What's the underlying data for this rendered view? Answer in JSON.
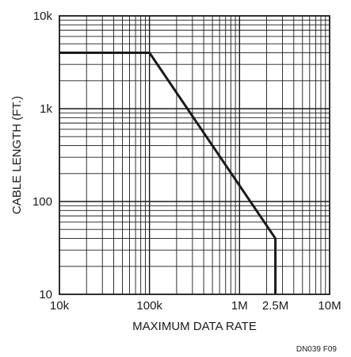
{
  "chart_data": {
    "type": "line",
    "xlabel": "MAXIMUM DATA RATE",
    "ylabel": "CABLE LENGTH (FT.)",
    "xscale": "log",
    "yscale": "log",
    "xlim": [
      10000,
      10000000
    ],
    "ylim": [
      10,
      10000
    ],
    "grid": true,
    "x_ticks": [
      {
        "value": 10000,
        "label": "10k"
      },
      {
        "value": 100000,
        "label": "100k"
      },
      {
        "value": 1000000,
        "label": "1M"
      },
      {
        "value": 2500000,
        "label": "2.5M"
      },
      {
        "value": 10000000,
        "label": "10M"
      }
    ],
    "y_ticks": [
      {
        "value": 10,
        "label": "10"
      },
      {
        "value": 100,
        "label": "100"
      },
      {
        "value": 1000,
        "label": "1k"
      },
      {
        "value": 10000,
        "label": "10k"
      }
    ],
    "series": [
      {
        "x": [
          10000,
          100000,
          2500000,
          2500000
        ],
        "y": [
          4000,
          4000,
          40,
          10
        ]
      }
    ]
  },
  "figure_code": "DN039 F09",
  "colors": {
    "line": "#1a1a1a",
    "grid": "#1a1a1a"
  }
}
